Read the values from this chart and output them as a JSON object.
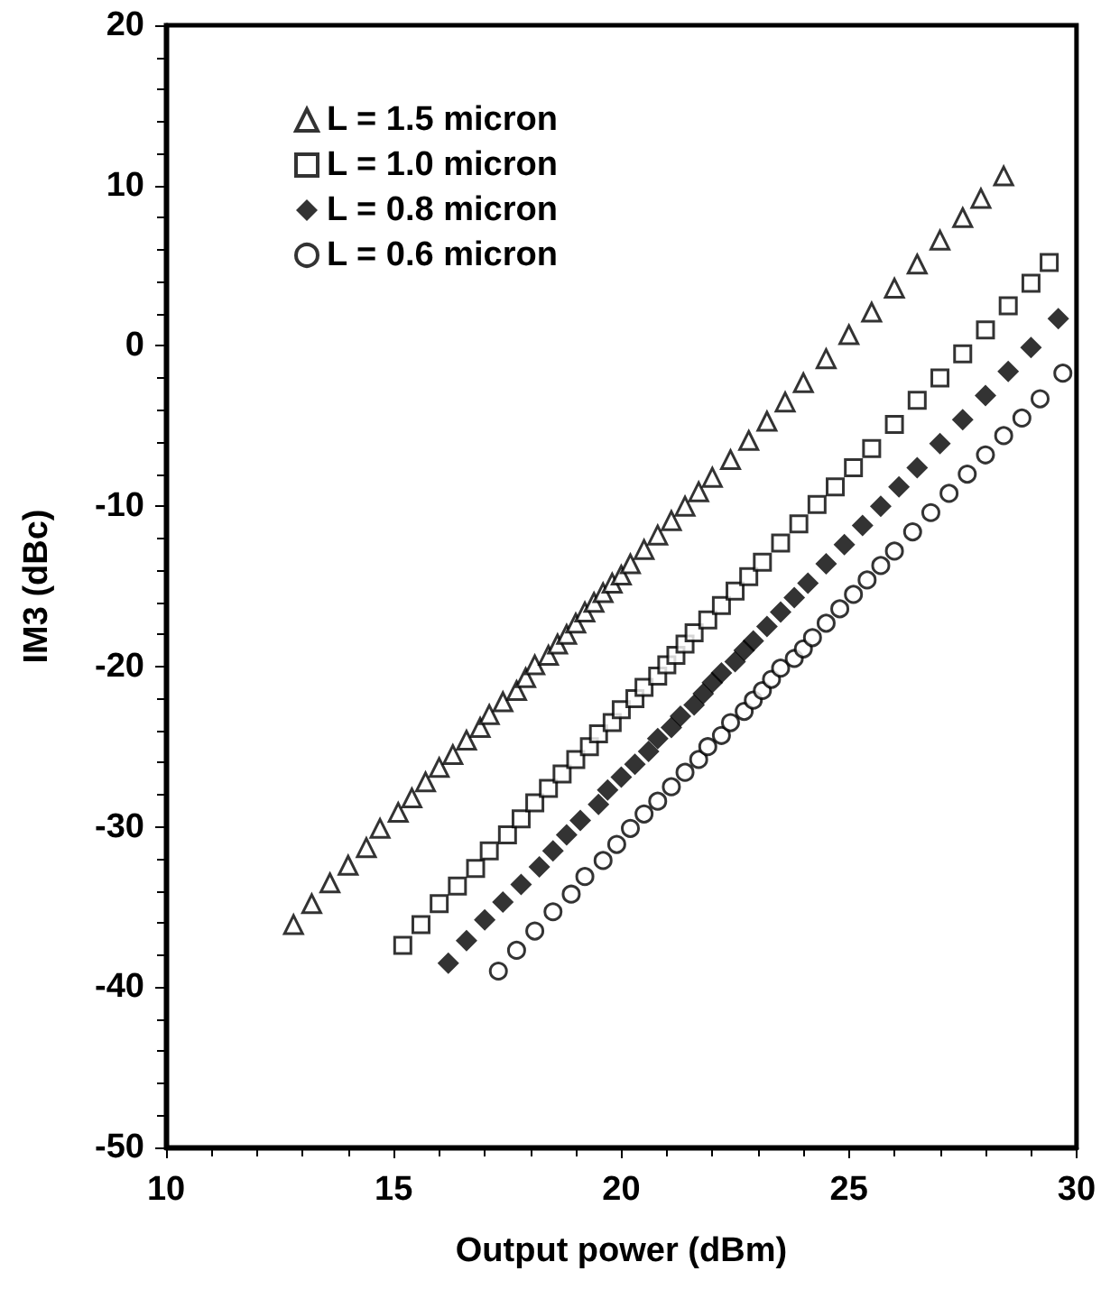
{
  "chart_data": {
    "type": "scatter",
    "xlabel": "Output power (dBm)",
    "ylabel": "IM3 (dBc)",
    "xlim": [
      10,
      30
    ],
    "ylim": [
      -50,
      20
    ],
    "xticks": [
      10,
      15,
      20,
      25,
      30
    ],
    "yticks": [
      -50,
      -40,
      -30,
      -20,
      -10,
      0,
      10,
      20
    ],
    "grid": false,
    "legend": "top left",
    "series": [
      {
        "name": "L = 1.5 micron",
        "color": "#000000",
        "marker": "triangle",
        "x": [
          12.8,
          13.2,
          13.6,
          14.0,
          14.4,
          14.7,
          15.1,
          15.4,
          15.7,
          16.0,
          16.3,
          16.6,
          16.9,
          17.1,
          17.4,
          17.7,
          17.9,
          18.1,
          18.4,
          18.6,
          18.8,
          19.0,
          19.2,
          19.4,
          19.6,
          19.8,
          20.0,
          20.2,
          20.5,
          20.8,
          21.1,
          21.4,
          21.7,
          22.0,
          22.4,
          22.8,
          23.2,
          23.6,
          24.0,
          24.5,
          25.0,
          25.5,
          26.0,
          26.5,
          27.0,
          27.5,
          27.9,
          28.4
        ],
        "values": [
          -36.1,
          -34.8,
          -33.5,
          -32.4,
          -31.3,
          -30.1,
          -29.1,
          -28.2,
          -27.2,
          -26.3,
          -25.5,
          -24.6,
          -23.8,
          -23.0,
          -22.2,
          -21.5,
          -20.7,
          -19.9,
          -19.3,
          -18.6,
          -18.0,
          -17.3,
          -16.6,
          -16.0,
          -15.4,
          -14.8,
          -14.3,
          -13.6,
          -12.7,
          -11.8,
          -10.9,
          -10.0,
          -9.1,
          -8.2,
          -7.1,
          -5.9,
          -4.7,
          -3.5,
          -2.3,
          -0.8,
          0.7,
          2.1,
          3.6,
          5.1,
          6.6,
          8.0,
          9.2,
          10.6
        ]
      },
      {
        "name": "L = 1.0 micron",
        "color": "#000000",
        "marker": "square",
        "x": [
          15.2,
          15.6,
          16.0,
          16.4,
          16.8,
          17.1,
          17.5,
          17.8,
          18.1,
          18.4,
          18.7,
          19.0,
          19.3,
          19.5,
          19.8,
          20.0,
          20.3,
          20.5,
          20.8,
          21.0,
          21.2,
          21.4,
          21.6,
          21.9,
          22.2,
          22.5,
          22.8,
          23.1,
          23.5,
          23.9,
          24.3,
          24.7,
          25.1,
          25.5,
          26.0,
          26.5,
          27.0,
          27.5,
          28.0,
          28.5,
          29.0,
          29.4
        ],
        "values": [
          -37.4,
          -36.1,
          -34.8,
          -33.7,
          -32.6,
          -31.5,
          -30.5,
          -29.5,
          -28.5,
          -27.6,
          -26.7,
          -25.8,
          -25.0,
          -24.2,
          -23.5,
          -22.7,
          -22.0,
          -21.3,
          -20.6,
          -19.9,
          -19.3,
          -18.6,
          -17.9,
          -17.1,
          -16.2,
          -15.3,
          -14.4,
          -13.5,
          -12.3,
          -11.1,
          -9.9,
          -8.8,
          -7.6,
          -6.4,
          -4.9,
          -3.4,
          -2.0,
          -0.5,
          1.0,
          2.5,
          3.9,
          5.2
        ]
      },
      {
        "name": "L = 0.8 micron",
        "color": "#000000",
        "marker": "diamond",
        "x": [
          16.2,
          16.6,
          17.0,
          17.4,
          17.8,
          18.2,
          18.5,
          18.8,
          19.1,
          19.5,
          19.7,
          20.0,
          20.3,
          20.6,
          20.8,
          21.1,
          21.3,
          21.6,
          21.8,
          22.0,
          22.2,
          22.5,
          22.7,
          22.9,
          23.2,
          23.5,
          23.8,
          24.1,
          24.5,
          24.9,
          25.3,
          25.7,
          26.1,
          26.5,
          27.0,
          27.5,
          28.0,
          28.5,
          29.0,
          29.6
        ],
        "values": [
          -38.5,
          -37.1,
          -35.8,
          -34.7,
          -33.6,
          -32.5,
          -31.5,
          -30.5,
          -29.6,
          -28.6,
          -27.7,
          -26.9,
          -26.1,
          -25.3,
          -24.5,
          -23.8,
          -23.1,
          -22.4,
          -21.7,
          -21.0,
          -20.4,
          -19.7,
          -19.0,
          -18.4,
          -17.5,
          -16.6,
          -15.7,
          -14.8,
          -13.6,
          -12.4,
          -11.2,
          -10.0,
          -8.8,
          -7.6,
          -6.1,
          -4.6,
          -3.1,
          -1.6,
          -0.1,
          1.7
        ]
      },
      {
        "name": "L = 0.6 micron",
        "color": "#000000",
        "marker": "circle",
        "x": [
          17.3,
          17.7,
          18.1,
          18.5,
          18.9,
          19.2,
          19.6,
          19.9,
          20.2,
          20.5,
          20.8,
          21.1,
          21.4,
          21.7,
          21.9,
          22.2,
          22.4,
          22.7,
          22.9,
          23.1,
          23.3,
          23.5,
          23.8,
          24.0,
          24.2,
          24.5,
          24.8,
          25.1,
          25.4,
          25.7,
          26.0,
          26.4,
          26.8,
          27.2,
          27.6,
          28.0,
          28.4,
          28.8,
          29.2,
          29.7
        ],
        "values": [
          -39.0,
          -37.7,
          -36.5,
          -35.3,
          -34.2,
          -33.1,
          -32.1,
          -31.1,
          -30.1,
          -29.2,
          -28.4,
          -27.5,
          -26.6,
          -25.8,
          -25.0,
          -24.3,
          -23.5,
          -22.8,
          -22.1,
          -21.5,
          -20.8,
          -20.1,
          -19.5,
          -18.9,
          -18.2,
          -17.3,
          -16.4,
          -15.5,
          -14.6,
          -13.7,
          -12.8,
          -11.6,
          -10.4,
          -9.2,
          -8.0,
          -6.8,
          -5.6,
          -4.5,
          -3.3,
          -1.7
        ]
      }
    ]
  }
}
